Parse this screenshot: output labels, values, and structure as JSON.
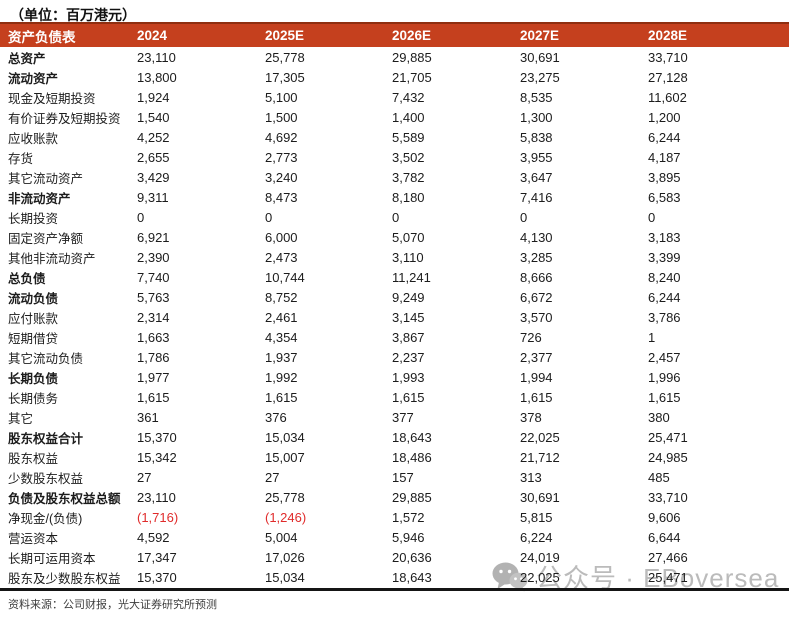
{
  "title": "（单位：百万港元）",
  "table": {
    "header": {
      "label": "资产负债表",
      "columns": [
        "2024",
        "2025E",
        "2026E",
        "2027E",
        "2028E"
      ]
    },
    "rows": [
      {
        "label": "总资产",
        "bold": true,
        "values": [
          "23,110",
          "25,778",
          "29,885",
          "30,691",
          "33,710"
        ]
      },
      {
        "label": "流动资产",
        "bold": true,
        "values": [
          "13,800",
          "17,305",
          "21,705",
          "23,275",
          "27,128"
        ]
      },
      {
        "label": "现金及短期投资",
        "bold": false,
        "values": [
          "1,924",
          "5,100",
          "7,432",
          "8,535",
          "11,602"
        ]
      },
      {
        "label": "有价证券及短期投资",
        "bold": false,
        "values": [
          "1,540",
          "1,500",
          "1,400",
          "1,300",
          "1,200"
        ]
      },
      {
        "label": "应收账款",
        "bold": false,
        "values": [
          "4,252",
          "4,692",
          "5,589",
          "5,838",
          "6,244"
        ]
      },
      {
        "label": "存货",
        "bold": false,
        "values": [
          "2,655",
          "2,773",
          "3,502",
          "3,955",
          "4,187"
        ]
      },
      {
        "label": "其它流动资产",
        "bold": false,
        "values": [
          "3,429",
          "3,240",
          "3,782",
          "3,647",
          "3,895"
        ]
      },
      {
        "label": "非流动资产",
        "bold": true,
        "values": [
          "9,311",
          "8,473",
          "8,180",
          "7,416",
          "6,583"
        ]
      },
      {
        "label": "长期投资",
        "bold": false,
        "values": [
          "0",
          "0",
          "0",
          "0",
          "0"
        ]
      },
      {
        "label": "固定资产净额",
        "bold": false,
        "values": [
          "6,921",
          "6,000",
          "5,070",
          "4,130",
          "3,183"
        ]
      },
      {
        "label": "其他非流动资产",
        "bold": false,
        "values": [
          "2,390",
          "2,473",
          "3,110",
          "3,285",
          "3,399"
        ]
      },
      {
        "label": "总负债",
        "bold": true,
        "values": [
          "7,740",
          "10,744",
          "11,241",
          "8,666",
          "8,240"
        ]
      },
      {
        "label": "流动负债",
        "bold": true,
        "values": [
          "5,763",
          "8,752",
          "9,249",
          "6,672",
          "6,244"
        ]
      },
      {
        "label": "应付账款",
        "bold": false,
        "values": [
          "2,314",
          "2,461",
          "3,145",
          "3,570",
          "3,786"
        ]
      },
      {
        "label": "短期借贷",
        "bold": false,
        "values": [
          "1,663",
          "4,354",
          "3,867",
          "726",
          "1"
        ]
      },
      {
        "label": "其它流动负债",
        "bold": false,
        "values": [
          "1,786",
          "1,937",
          "2,237",
          "2,377",
          "2,457"
        ]
      },
      {
        "label": "长期负债",
        "bold": true,
        "values": [
          "1,977",
          "1,992",
          "1,993",
          "1,994",
          "1,996"
        ]
      },
      {
        "label": "长期债务",
        "bold": false,
        "values": [
          "1,615",
          "1,615",
          "1,615",
          "1,615",
          "1,615"
        ]
      },
      {
        "label": "其它",
        "bold": false,
        "values": [
          "361",
          "376",
          "377",
          "378",
          "380"
        ]
      },
      {
        "label": "股东权益合计",
        "bold": true,
        "values": [
          "15,370",
          "15,034",
          "18,643",
          "22,025",
          "25,471"
        ]
      },
      {
        "label": "股东权益",
        "bold": false,
        "values": [
          "15,342",
          "15,007",
          "18,486",
          "21,712",
          "24,985"
        ]
      },
      {
        "label": "少数股东权益",
        "bold": false,
        "values": [
          "27",
          "27",
          "157",
          "313",
          "485"
        ]
      },
      {
        "label": "负债及股东权益总额",
        "bold": true,
        "values": [
          "23,110",
          "25,778",
          "29,885",
          "30,691",
          "33,710"
        ]
      },
      {
        "label": "净现金/(负债)",
        "bold": false,
        "red": [
          0,
          1
        ],
        "values": [
          "(1,716)",
          "(1,246)",
          "1,572",
          "5,815",
          "9,606"
        ]
      },
      {
        "label": "营运资本",
        "bold": false,
        "values": [
          "4,592",
          "5,004",
          "5,946",
          "6,224",
          "6,644"
        ]
      },
      {
        "label": "长期可运用资本",
        "bold": false,
        "values": [
          "17,347",
          "17,026",
          "20,636",
          "24,019",
          "27,466"
        ]
      },
      {
        "label": "股东及少数股东权益",
        "bold": false,
        "values": [
          "15,370",
          "15,034",
          "18,643",
          "22,025",
          "25,471"
        ]
      }
    ]
  },
  "footer": {
    "source": "资料来源：公司财报，光大证券研究所预测"
  },
  "watermark": {
    "icon": "wechat-icon",
    "text": "公众号 · EBoversea"
  },
  "colors": {
    "header_bg": "#c5401e",
    "header_text": "#ffffff",
    "negative_value": "#e02b2b",
    "watermark": "#b4b4b4"
  }
}
